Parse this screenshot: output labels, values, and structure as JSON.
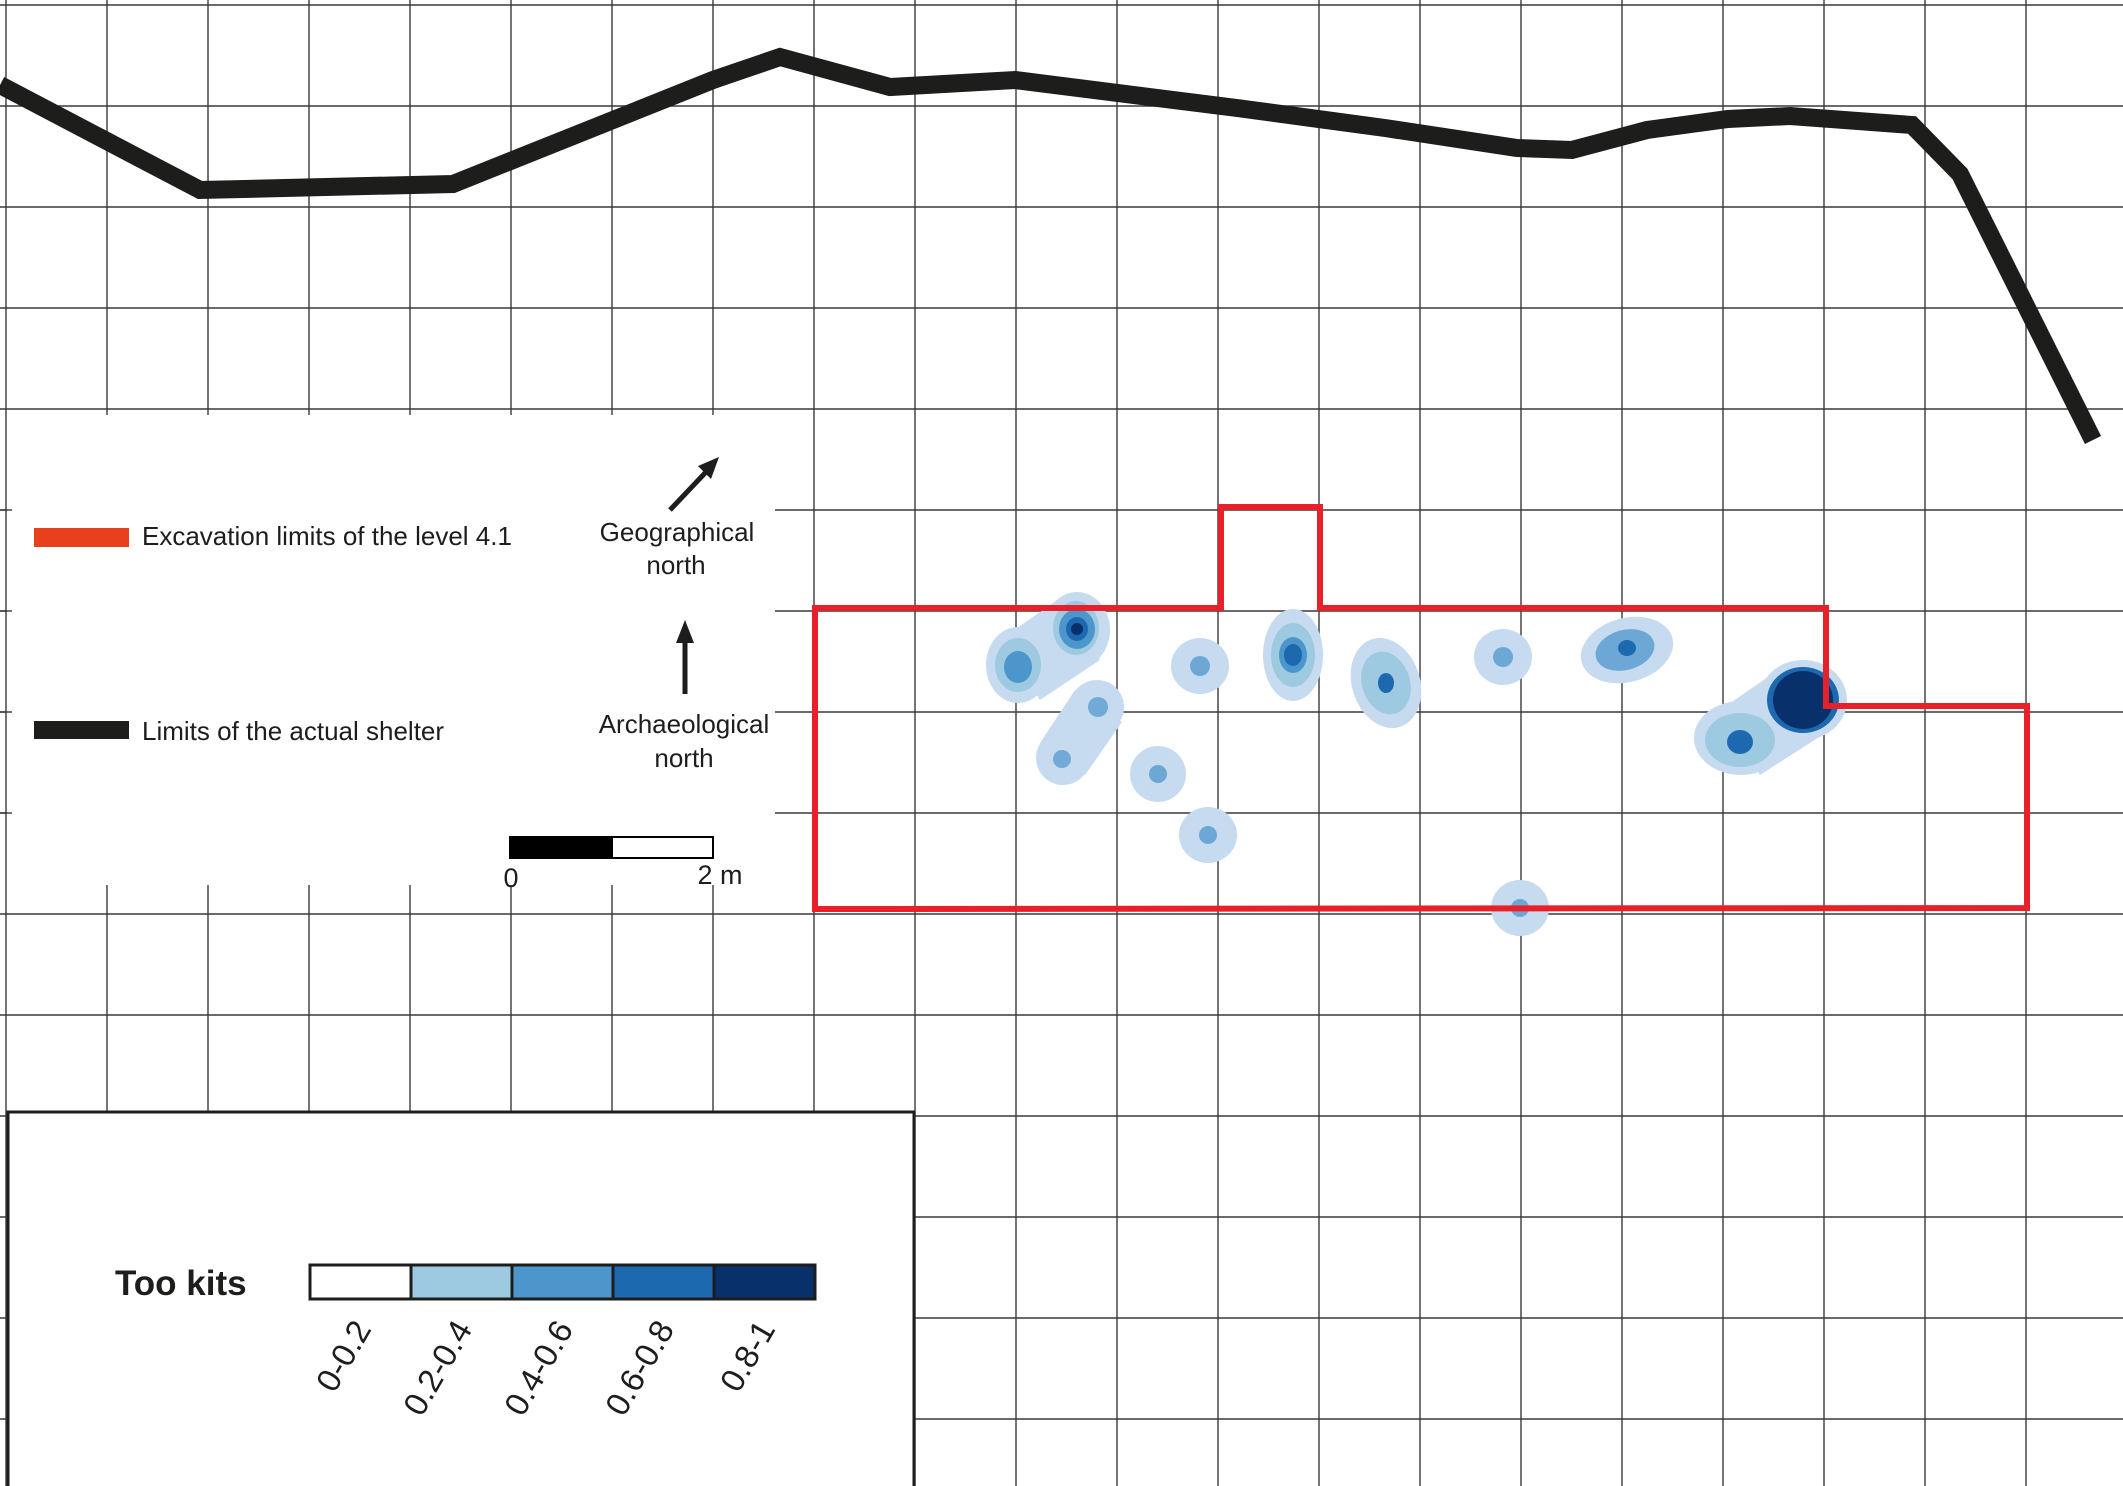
{
  "legend": {
    "excavation_label": "Excavation limits of the level 4.1",
    "shelter_label": "Limits of the actual shelter",
    "excavation_color": "#e8202a",
    "excavation_swatch_color": "#e8401c",
    "shelter_color": "#1d1d1b"
  },
  "north": {
    "geographical_line1": "Geographical",
    "geographical_line2": "north",
    "archaeological_line1": "Archaeological",
    "archaeological_line2": "north"
  },
  "scale_bar": {
    "start_label": "0",
    "end_label": "2 m"
  },
  "density_legend": {
    "title": "Too kits",
    "classes": [
      {
        "label": "0-0.2",
        "color": "#ffffff"
      },
      {
        "label": "0.2-0.4",
        "color": "#9ecae1"
      },
      {
        "label": "0.4-0.6",
        "color": "#4d96cc"
      },
      {
        "label": "0.6-0.8",
        "color": "#1d69b0"
      },
      {
        "label": "0.8-1",
        "color": "#08306b"
      }
    ]
  }
}
